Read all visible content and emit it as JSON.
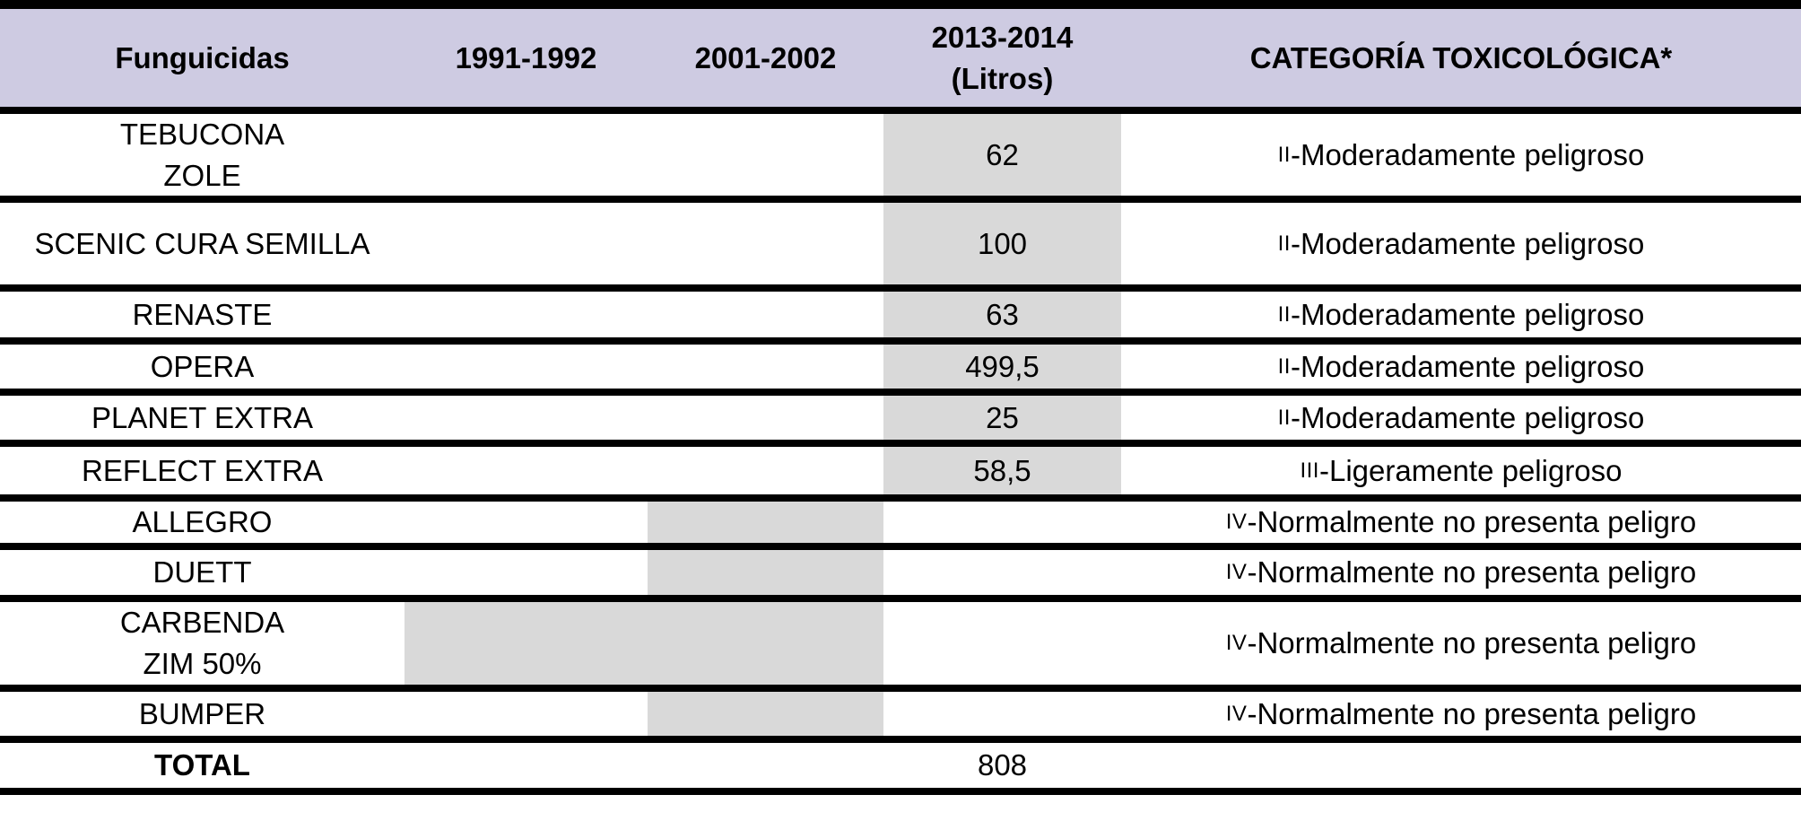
{
  "colors": {
    "header_bg": "#cecbe2",
    "shaded_cell_bg": "#d9d9d9",
    "border": "#000000",
    "text": "#000000"
  },
  "table": {
    "header": {
      "fungicides": "Funguicidas",
      "period1": "1991-1992",
      "period2": "2001-2002",
      "period3": "2013-2014\n(Litros)",
      "category": "CATEGORÍA TOXICOLÓGICA*"
    },
    "rows": [
      {
        "name": "TEBUCONA\nZOLE",
        "p1991": "",
        "p2001": "",
        "litros": "62",
        "category_prefix": "II",
        "category_text": "-Moderadamente peligroso",
        "shaded_period": "2013-2014"
      },
      {
        "name": "SCENIC CURA SEMILLA",
        "p1991": "",
        "p2001": "",
        "litros": "100",
        "category_prefix": "II",
        "category_text": "-Moderadamente peligroso",
        "shaded_period": "2013-2014"
      },
      {
        "name": "RENASTE",
        "p1991": "",
        "p2001": "",
        "litros": "63",
        "category_prefix": "II",
        "category_text": "-Moderadamente peligroso",
        "shaded_period": "2013-2014"
      },
      {
        "name": "OPERA",
        "p1991": "",
        "p2001": "",
        "litros": "499,5",
        "category_prefix": "II",
        "category_text": "-Moderadamente peligroso",
        "shaded_period": "2013-2014"
      },
      {
        "name": "PLANET EXTRA",
        "p1991": "",
        "p2001": "",
        "litros": "25",
        "category_prefix": "II",
        "category_text": "-Moderadamente peligroso",
        "shaded_period": "2013-2014"
      },
      {
        "name": "REFLECT EXTRA",
        "p1991": "",
        "p2001": "",
        "litros": "58,5",
        "category_prefix": "III",
        "category_text": "-Ligeramente peligroso",
        "shaded_period": "2013-2014"
      },
      {
        "name": "ALLEGRO",
        "p1991": "",
        "p2001": "",
        "litros": "",
        "category_prefix": "IV",
        "category_text": "-Normalmente no presenta peligro",
        "shaded_period": "2001-2002"
      },
      {
        "name": "DUETT",
        "p1991": "",
        "p2001": "",
        "litros": "",
        "category_prefix": "IV",
        "category_text": "-Normalmente no presenta peligro",
        "shaded_period": "2001-2002"
      },
      {
        "name": "CARBENDA\nZIM 50%",
        "p1991": "",
        "p2001": "",
        "litros": "",
        "category_prefix": "IV",
        "category_text": "-Normalmente no presenta peligro",
        "shaded_period": "1991-2002"
      },
      {
        "name": "BUMPER",
        "p1991": "",
        "p2001": "",
        "litros": "",
        "category_prefix": "IV",
        "category_text": "-Normalmente no presenta peligro",
        "shaded_period": "2001-2002"
      }
    ],
    "total": {
      "label": "TOTAL",
      "value": "808"
    }
  }
}
